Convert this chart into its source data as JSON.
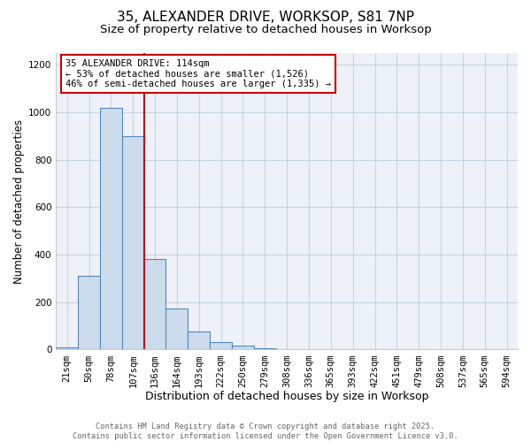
{
  "title_line1": "35, ALEXANDER DRIVE, WORKSOP, S81 7NP",
  "title_line2": "Size of property relative to detached houses in Worksop",
  "xlabel": "Distribution of detached houses by size in Worksop",
  "ylabel": "Number of detached properties",
  "bar_labels": [
    "21sqm",
    "50sqm",
    "78sqm",
    "107sqm",
    "136sqm",
    "164sqm",
    "193sqm",
    "222sqm",
    "250sqm",
    "279sqm",
    "308sqm",
    "336sqm",
    "365sqm",
    "393sqm",
    "422sqm",
    "451sqm",
    "479sqm",
    "508sqm",
    "537sqm",
    "565sqm",
    "594sqm"
  ],
  "bar_values": [
    10,
    310,
    1020,
    900,
    380,
    175,
    75,
    30,
    15,
    5,
    0,
    0,
    0,
    0,
    0,
    0,
    0,
    0,
    0,
    0,
    0
  ],
  "bar_color": "#ccdcec",
  "bar_edge_color": "#5588bb",
  "vline_x": 3.5,
  "vline_color": "#cc0000",
  "annotation_text": "35 ALEXANDER DRIVE: 114sqm\n← 53% of detached houses are smaller (1,526)\n46% of semi-detached houses are larger (1,335) →",
  "annotation_box_facecolor": "#ffffff",
  "annotation_box_edgecolor": "#cc0000",
  "annotation_fontsize": 7.5,
  "ylim": [
    0,
    1250
  ],
  "yticks": [
    0,
    200,
    400,
    600,
    800,
    1000,
    1200
  ],
  "grid_color": "#c8d4e0",
  "background_color": "#eef2f8",
  "footer_text": "Contains HM Land Registry data © Crown copyright and database right 2025.\nContains public sector information licensed under the Open Government Licence v3.0.",
  "title_fontsize": 11,
  "subtitle_fontsize": 9.5,
  "xlabel_fontsize": 9,
  "ylabel_fontsize": 8.5,
  "tick_fontsize": 7.5
}
